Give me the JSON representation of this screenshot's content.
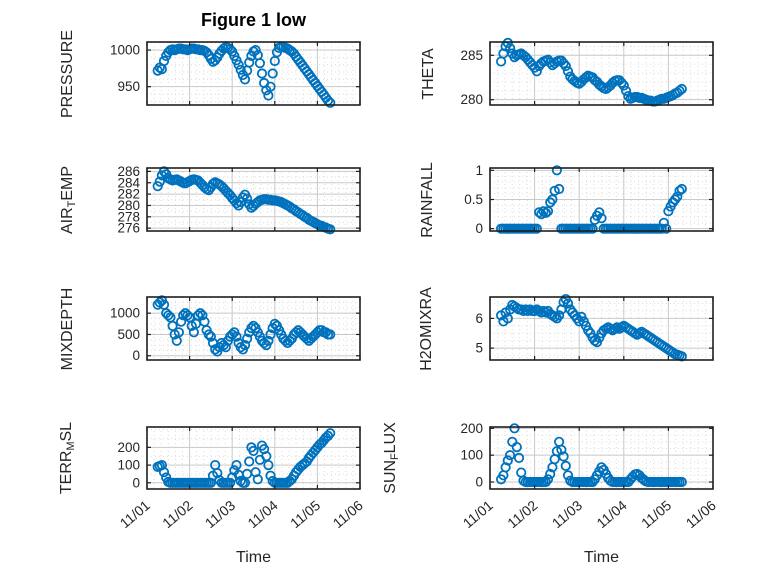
{
  "figure": {
    "title": "Figure 1 low",
    "xlabel": "Time",
    "x_tick_labels": [
      "11/01",
      "11/02",
      "11/03",
      "11/04",
      "11/05",
      "11/06"
    ],
    "marker_color": "#0072BD",
    "axis_color": "#1f1f1f",
    "text_color": "#262626",
    "grid_color": "#c9c9c9",
    "minor_grid_color": "#dcdcdc"
  },
  "chart_data": [
    {
      "id": "pressure",
      "type": "scatter",
      "panel": {
        "row": 0,
        "col": 0
      },
      "label": "PRESSURE",
      "ylabel_parts": [
        {
          "text": "PRESSURE"
        }
      ],
      "yticks": [
        950,
        1000
      ],
      "ytick_labels": [
        "950",
        "1000"
      ],
      "ylim": [
        925,
        1011
      ],
      "y_minor_step": 10,
      "xlim_days": [
        0,
        5
      ],
      "x": {
        "t0": 0.25,
        "dt": 0.05
      },
      "y": [
        972,
        976,
        974,
        985,
        992,
        997,
        1000,
        1001,
        1000,
        1001,
        1002,
        1002,
        1001,
        1001,
        1000,
        1001,
        1002,
        1002,
        1001,
        1001,
        1000,
        1000,
        999,
        997,
        993,
        988,
        984,
        986,
        990,
        995,
        999,
        1002,
        1004,
        1003,
        1001,
        998,
        992,
        986,
        980,
        973,
        966,
        960,
        972,
        983,
        992,
        998,
        1000,
        993,
        982,
        968,
        955,
        945,
        938,
        950,
        968,
        985,
        997,
        1003,
        1005,
        1004,
        1003,
        1002,
        1000,
        998,
        995,
        991,
        987,
        983,
        979,
        975,
        971,
        967,
        963,
        959,
        955,
        951,
        947,
        943,
        939,
        935,
        931,
        928
      ]
    },
    {
      "id": "theta",
      "type": "scatter",
      "panel": {
        "row": 0,
        "col": 1
      },
      "label": "THETA",
      "ylabel_parts": [
        {
          "text": "THETA"
        }
      ],
      "yticks": [
        280,
        285
      ],
      "ytick_labels": [
        "280",
        "285"
      ],
      "ylim": [
        279.4,
        286.5
      ],
      "y_minor_step": 1,
      "xlim_days": [
        0,
        5
      ],
      "x": {
        "t0": 0.25,
        "dt": 0.05
      },
      "y": [
        284.3,
        285.2,
        286.0,
        286.4,
        285.8,
        285.2,
        284.8,
        285.0,
        285.1,
        285.2,
        285.0,
        284.8,
        284.5,
        284.2,
        283.9,
        283.6,
        283.2,
        283.8,
        284.1,
        284.3,
        284.4,
        284.5,
        284.2,
        283.9,
        284.1,
        284.3,
        284.4,
        284.4,
        284.1,
        283.8,
        283.2,
        282.6,
        282.3,
        282.1,
        281.9,
        281.8,
        282.0,
        282.3,
        282.5,
        282.7,
        282.6,
        282.5,
        282.2,
        282.0,
        281.7,
        281.5,
        281.3,
        281.2,
        281.4,
        281.6,
        281.9,
        282.1,
        282.2,
        282.2,
        281.9,
        281.6,
        281.0,
        280.4,
        280.1,
        280.2,
        280.3,
        280.3,
        280.2,
        280.2,
        280.1,
        280.0,
        279.9,
        279.9,
        279.8,
        279.8,
        279.9,
        280.0,
        280.1,
        280.1,
        280.2,
        280.3,
        280.4,
        280.5,
        280.7,
        280.8,
        281.0,
        281.2
      ]
    },
    {
      "id": "air_temp",
      "type": "scatter",
      "panel": {
        "row": 1,
        "col": 0
      },
      "label": "AIR_TEMP",
      "ylabel_parts": [
        {
          "text": "AIR"
        },
        {
          "text": "T",
          "sub": true
        },
        {
          "text": "EMP"
        }
      ],
      "yticks": [
        276,
        278,
        280,
        282,
        284,
        286
      ],
      "ytick_labels": [
        "276",
        "278",
        "280",
        "282",
        "284",
        "286"
      ],
      "ylim": [
        275.5,
        286.6
      ],
      "y_minor_step": 1,
      "xlim_days": [
        0,
        5
      ],
      "x": {
        "t0": 0.25,
        "dt": 0.05
      },
      "y": [
        283.4,
        284.2,
        285.3,
        286.0,
        285.5,
        284.8,
        284.6,
        284.4,
        284.5,
        284.6,
        284.4,
        284.2,
        284.0,
        283.9,
        284.1,
        284.3,
        284.5,
        284.6,
        284.5,
        284.4,
        284.0,
        283.6,
        283.2,
        282.9,
        282.7,
        283.2,
        283.8,
        284.1,
        283.9,
        283.7,
        283.4,
        283.0,
        282.6,
        282.2,
        281.8,
        281.3,
        280.9,
        280.4,
        280.0,
        280.6,
        281.4,
        281.9,
        281.2,
        280.2,
        279.6,
        279.9,
        280.3,
        280.6,
        280.9,
        281.0,
        281.1,
        281.1,
        281.0,
        281.0,
        280.9,
        280.9,
        280.8,
        280.7,
        280.6,
        280.4,
        280.2,
        280.0,
        279.8,
        279.5,
        279.3,
        279.0,
        278.8,
        278.5,
        278.3,
        278.0,
        277.8,
        277.5,
        277.3,
        277.1,
        276.9,
        276.7,
        276.5,
        276.4,
        276.2,
        276.1,
        275.9,
        275.8
      ]
    },
    {
      "id": "rainfall",
      "type": "scatter",
      "panel": {
        "row": 1,
        "col": 1
      },
      "label": "RAINFALL",
      "ylabel_parts": [
        {
          "text": "RAINFALL"
        }
      ],
      "yticks": [
        0,
        0.5,
        1
      ],
      "ytick_labels": [
        "0",
        "0.5",
        "1"
      ],
      "ylim": [
        -0.04,
        1.04
      ],
      "y_minor_step": 0.1,
      "xlim_days": [
        0,
        5
      ],
      "x": {
        "t0": 0.25,
        "dt": 0.05
      },
      "y": [
        0,
        0,
        0,
        0,
        0,
        0,
        0,
        0,
        0,
        0,
        0,
        0,
        0,
        0,
        0,
        0,
        0,
        0.28,
        0.25,
        0.3,
        0.27,
        0.3,
        0.45,
        0.5,
        0.65,
        1.0,
        0.68,
        0,
        0,
        0,
        0,
        0,
        0,
        0,
        0,
        0,
        0,
        0,
        0,
        0,
        0,
        0,
        0.15,
        0.22,
        0.28,
        0.18,
        0,
        0,
        0,
        0,
        0,
        0,
        0,
        0,
        0,
        0,
        0,
        0,
        0,
        0,
        0,
        0,
        0,
        0,
        0,
        0,
        0,
        0,
        0,
        0,
        0,
        0,
        0,
        0.1,
        0,
        0.3,
        0.38,
        0.45,
        0.5,
        0.55,
        0.65,
        0.68
      ]
    },
    {
      "id": "mixdepth",
      "type": "scatter",
      "panel": {
        "row": 2,
        "col": 0
      },
      "label": "MIXDEPTH",
      "ylabel_parts": [
        {
          "text": "MIXDEPTH"
        }
      ],
      "yticks": [
        0,
        500,
        1000
      ],
      "ytick_labels": [
        "0",
        "500",
        "1000"
      ],
      "ylim": [
        -100,
        1380
      ],
      "y_minor_step": 125,
      "xlim_days": [
        0,
        5
      ],
      "x": {
        "t0": 0.25,
        "dt": 0.05
      },
      "y": [
        1200,
        1250,
        1300,
        1200,
        1000,
        950,
        900,
        700,
        500,
        350,
        550,
        800,
        950,
        1000,
        950,
        900,
        700,
        550,
        750,
        950,
        1000,
        950,
        800,
        600,
        500,
        450,
        300,
        150,
        100,
        200,
        300,
        250,
        200,
        350,
        450,
        500,
        550,
        450,
        300,
        200,
        150,
        250,
        400,
        550,
        650,
        700,
        650,
        550,
        450,
        350,
        300,
        250,
        350,
        500,
        650,
        750,
        700,
        600,
        500,
        400,
        350,
        300,
        350,
        400,
        500,
        550,
        600,
        550,
        500,
        450,
        400,
        350,
        400,
        450,
        500,
        550,
        600,
        600,
        550,
        550,
        500,
        500
      ]
    },
    {
      "id": "h2omixra",
      "type": "scatter",
      "panel": {
        "row": 2,
        "col": 1
      },
      "label": "H2OMIXRA",
      "ylabel_parts": [
        {
          "text": "H2OMIXRA"
        }
      ],
      "yticks": [
        5,
        6
      ],
      "ytick_labels": [
        "5",
        "6"
      ],
      "ylim": [
        4.6,
        6.72
      ],
      "y_minor_step": 0.25,
      "xlim_days": [
        0,
        5
      ],
      "x": {
        "t0": 0.25,
        "dt": 0.05
      },
      "y": [
        6.1,
        5.9,
        6.2,
        6.0,
        6.3,
        6.45,
        6.4,
        6.35,
        6.3,
        6.3,
        6.25,
        6.3,
        6.25,
        6.3,
        6.25,
        6.25,
        6.3,
        6.25,
        6.2,
        6.25,
        6.2,
        6.25,
        6.15,
        6.1,
        6.05,
        6.0,
        6.1,
        6.3,
        6.55,
        6.65,
        6.5,
        6.3,
        6.2,
        6.1,
        6.0,
        5.9,
        6.05,
        5.9,
        5.75,
        5.6,
        5.5,
        5.35,
        5.25,
        5.2,
        5.35,
        5.5,
        5.6,
        5.65,
        5.7,
        5.65,
        5.6,
        5.65,
        5.7,
        5.65,
        5.7,
        5.75,
        5.7,
        5.65,
        5.6,
        5.55,
        5.5,
        5.45,
        5.5,
        5.55,
        5.5,
        5.45,
        5.4,
        5.35,
        5.3,
        5.25,
        5.2,
        5.15,
        5.1,
        5.05,
        5.0,
        4.95,
        4.9,
        4.85,
        4.8,
        4.78,
        4.75,
        4.72
      ]
    },
    {
      "id": "terr_msl",
      "type": "scatter",
      "panel": {
        "row": 3,
        "col": 0
      },
      "label": "TERR_MSL",
      "ylabel_parts": [
        {
          "text": "TERR"
        },
        {
          "text": "M",
          "sub": true
        },
        {
          "text": "SL"
        }
      ],
      "yticks": [
        0,
        100,
        200
      ],
      "ytick_labels": [
        "0",
        "100",
        "200"
      ],
      "ylim": [
        -35,
        315
      ],
      "y_minor_step": 50,
      "xlim_days": [
        0,
        5
      ],
      "x": {
        "t0": 0.25,
        "dt": 0.05
      },
      "y": [
        90,
        95,
        100,
        60,
        30,
        5,
        0,
        0,
        0,
        0,
        0,
        0,
        0,
        0,
        0,
        0,
        0,
        0,
        0,
        0,
        0,
        0,
        0,
        0,
        0,
        0,
        40,
        100,
        55,
        15,
        0,
        0,
        0,
        0,
        0,
        30,
        70,
        100,
        45,
        10,
        0,
        0,
        50,
        120,
        200,
        180,
        60,
        20,
        130,
        210,
        190,
        150,
        100,
        40,
        10,
        0,
        0,
        0,
        0,
        0,
        0,
        0,
        10,
        20,
        40,
        60,
        75,
        90,
        100,
        110,
        120,
        140,
        155,
        170,
        185,
        200,
        215,
        225,
        240,
        255,
        265,
        280
      ]
    },
    {
      "id": "sun_flux",
      "type": "scatter",
      "panel": {
        "row": 3,
        "col": 1
      },
      "label": "SUN_FLUX",
      "ylabel_parts": [
        {
          "text": "SUN"
        },
        {
          "text": "F",
          "sub": true
        },
        {
          "text": "LUX"
        }
      ],
      "yticks": [
        0,
        100,
        200
      ],
      "ytick_labels": [
        "0",
        "100",
        "200"
      ],
      "ylim": [
        -26,
        205
      ],
      "y_minor_step": 25,
      "xlim_days": [
        0,
        5
      ],
      "x": {
        "t0": 0.25,
        "dt": 0.05
      },
      "y": [
        10,
        25,
        55,
        80,
        100,
        150,
        200,
        130,
        90,
        35,
        5,
        0,
        0,
        0,
        0,
        0,
        0,
        0,
        0,
        0,
        0,
        10,
        30,
        55,
        85,
        115,
        150,
        120,
        95,
        60,
        25,
        5,
        0,
        0,
        0,
        0,
        0,
        0,
        0,
        0,
        0,
        0,
        10,
        25,
        40,
        55,
        45,
        30,
        15,
        5,
        0,
        0,
        0,
        0,
        0,
        0,
        0,
        0,
        10,
        20,
        28,
        30,
        25,
        15,
        8,
        2,
        0,
        0,
        0,
        0,
        0,
        0,
        0,
        0,
        0,
        0,
        0,
        0,
        0,
        0,
        0,
        0
      ]
    }
  ]
}
